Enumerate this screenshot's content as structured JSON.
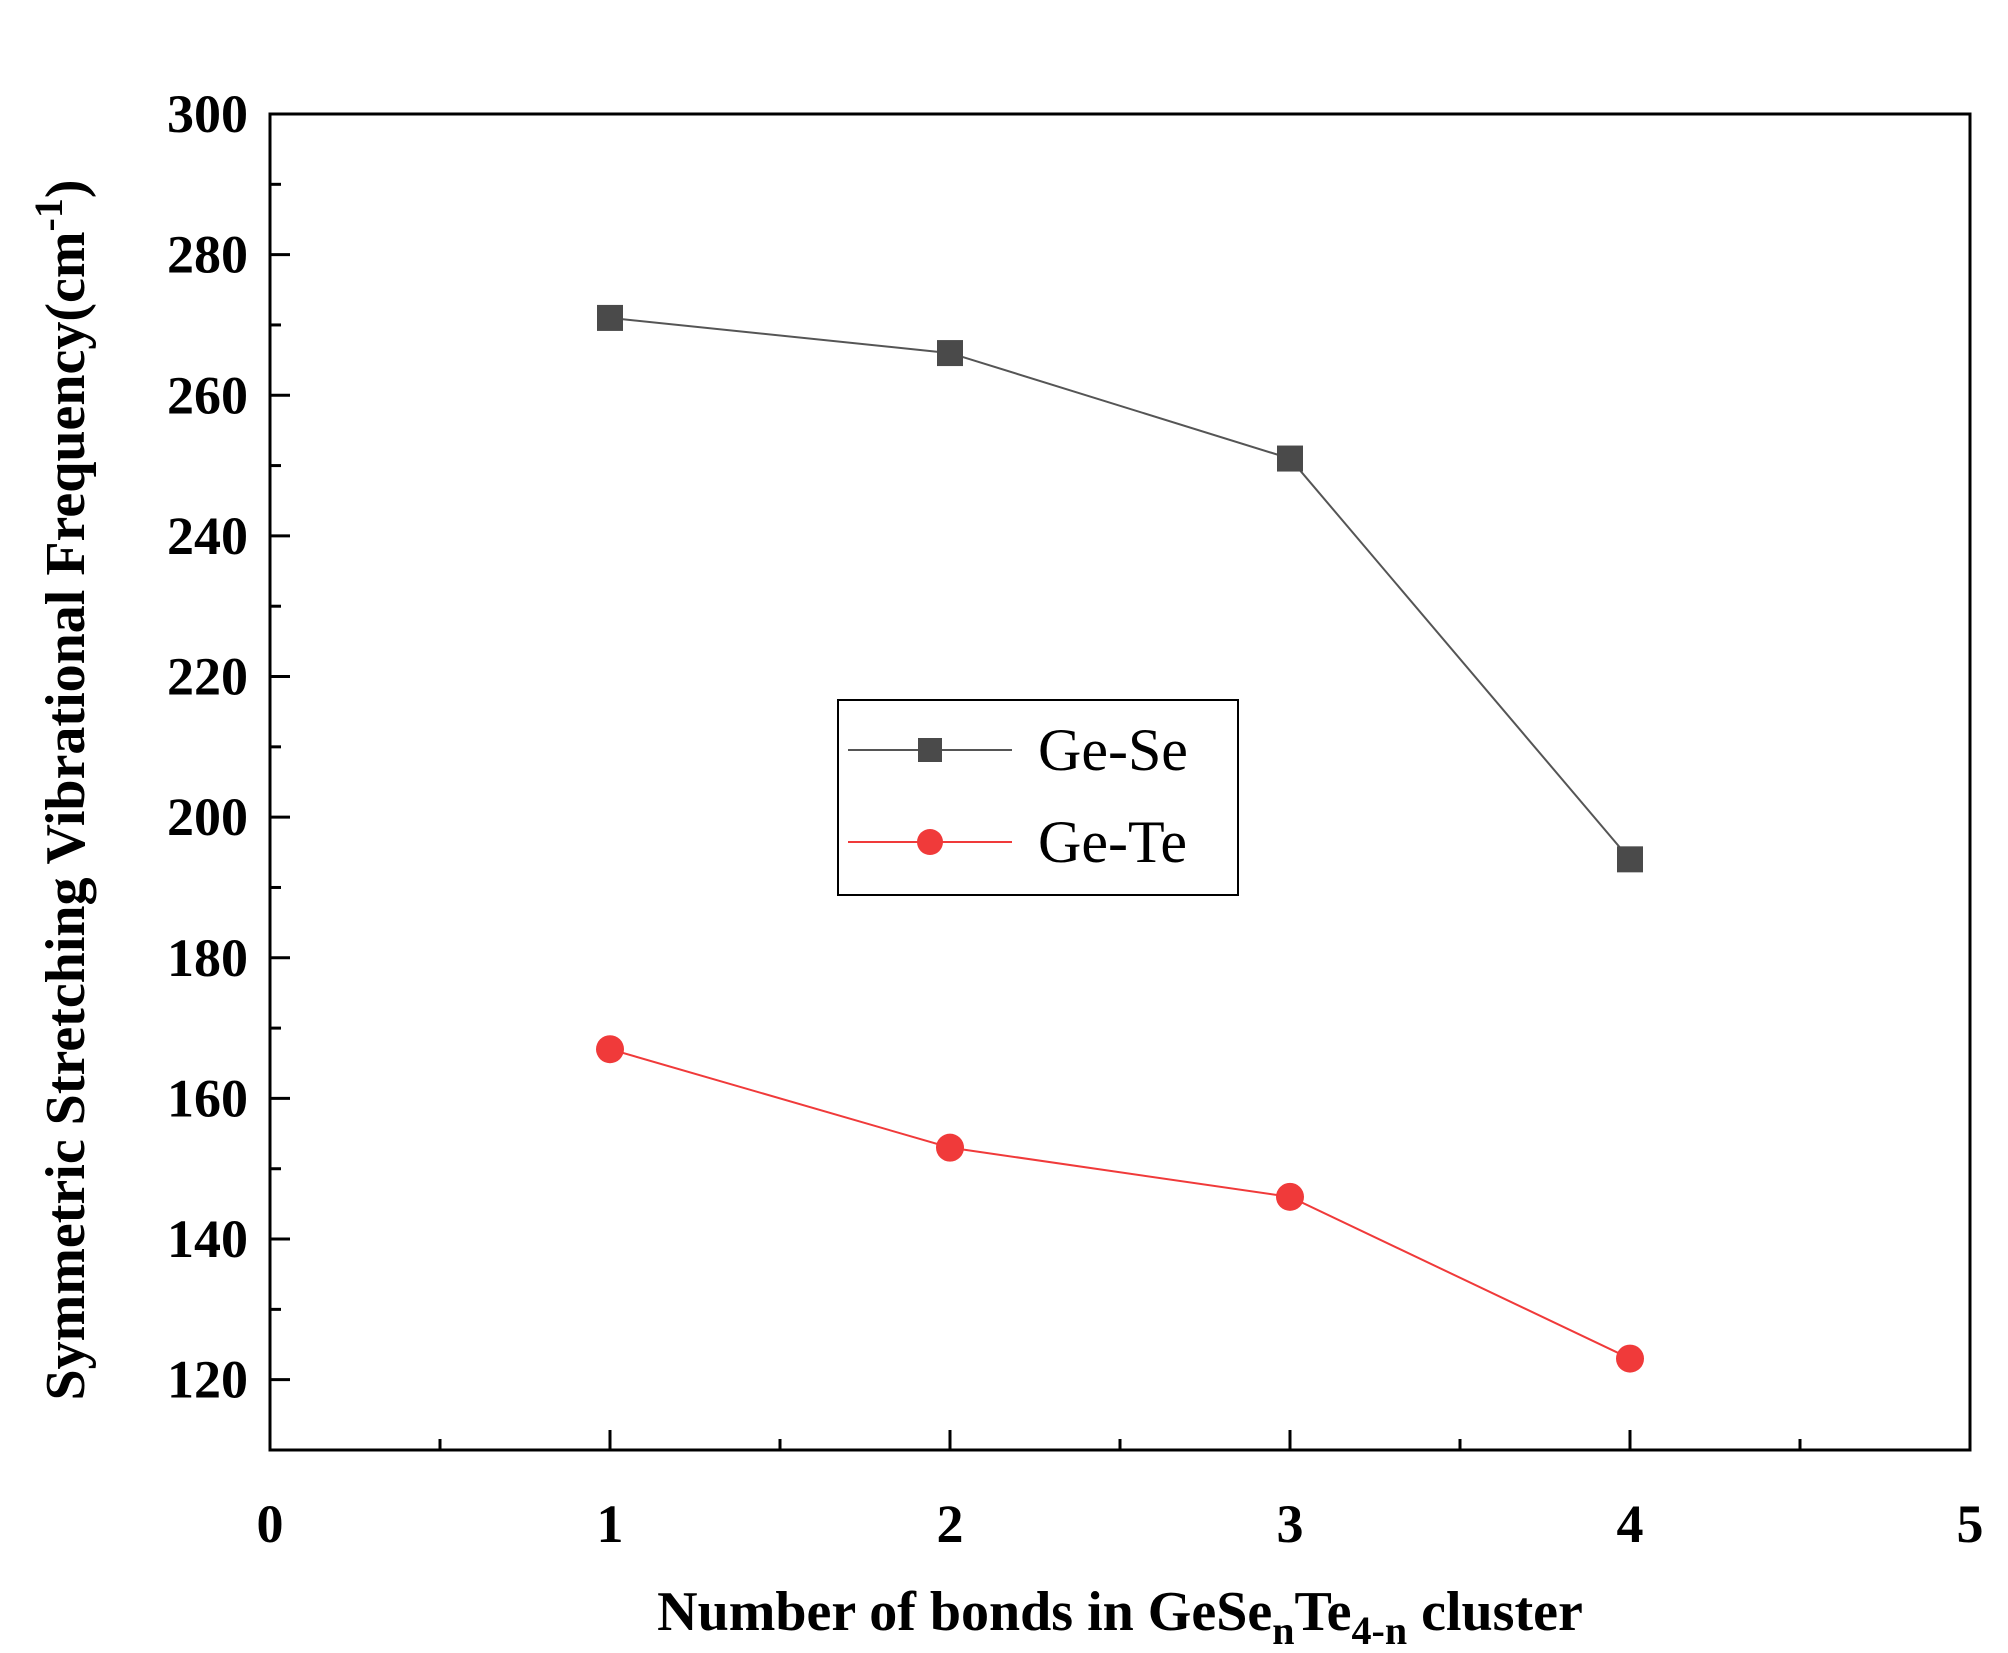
{
  "chart_data": {
    "type": "line",
    "xlabel_parts": [
      "Number of bonds in GeSe",
      "n",
      "Te",
      "4-n",
      " cluster"
    ],
    "ylabel_parts": [
      "Symmetric Stretching Vibrational Frequency(cm",
      "-1",
      ")"
    ],
    "xlim": [
      0,
      5
    ],
    "ylim": [
      110,
      300
    ],
    "xticks": [
      0,
      1,
      2,
      3,
      4,
      5
    ],
    "yticks": [
      120,
      140,
      160,
      180,
      200,
      220,
      240,
      260,
      280,
      300
    ],
    "x": [
      1,
      2,
      3,
      4
    ],
    "series": [
      {
        "name": "Ge-Se",
        "values": [
          271,
          266,
          251,
          194
        ],
        "color": "#4a4a4a",
        "line_color": "#555555",
        "marker": "square"
      },
      {
        "name": "Ge-Te",
        "values": [
          167,
          153,
          146,
          123
        ],
        "color": "#f03a3a",
        "line_color": "#f03a3a",
        "marker": "circle"
      }
    ],
    "legend_position": "center",
    "grid": false
  }
}
